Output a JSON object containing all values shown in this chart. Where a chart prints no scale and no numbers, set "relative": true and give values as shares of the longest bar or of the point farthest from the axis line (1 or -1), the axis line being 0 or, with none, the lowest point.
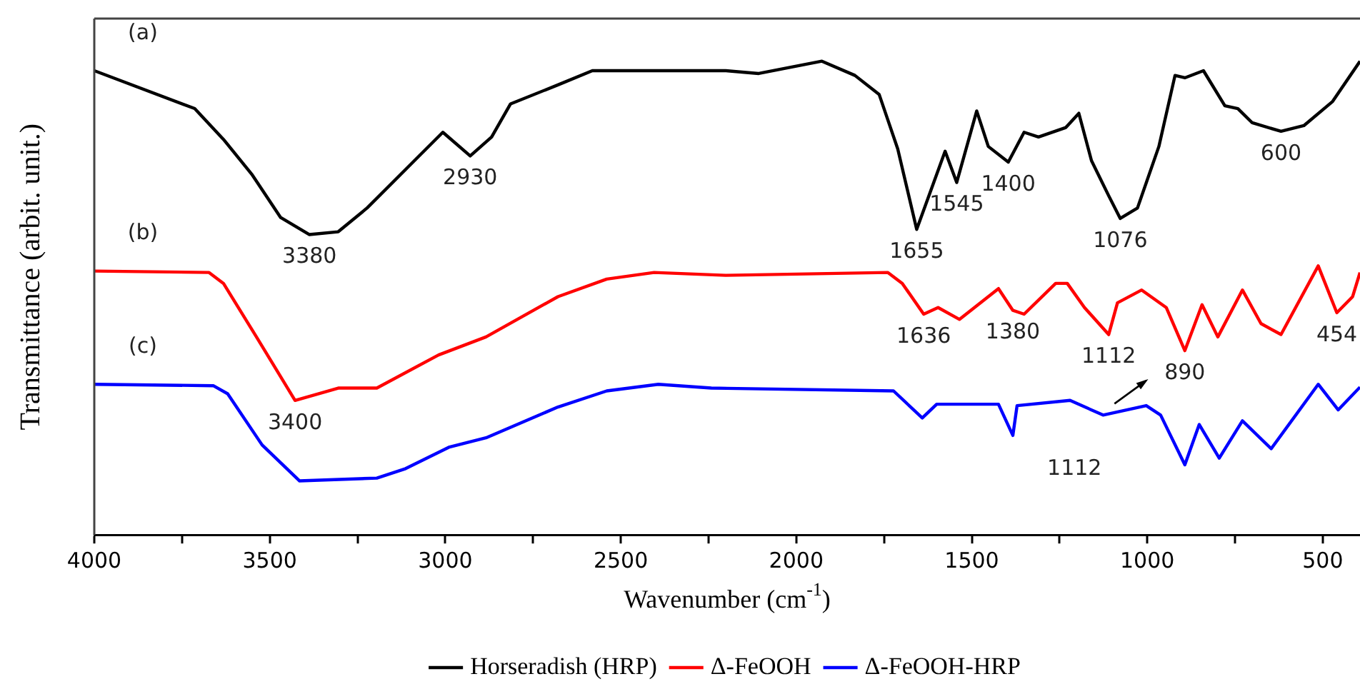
{
  "chart_data": {
    "type": "line",
    "relative": true,
    "xlabel": "Wavenumber (cm$^{-1}$)",
    "ylabel": "Transmittance (arbit. unit.)",
    "xlim": [
      4000,
      394
    ],
    "xticks": [
      4000,
      {
        "value": 3750,
        "label": null
      },
      3500,
      {
        "value": 3250,
        "label": null
      },
      3000,
      {
        "value": 2750,
        "label": null
      },
      2500,
      {
        "value": 2250,
        "label": null
      },
      2000,
      {
        "value": 1750,
        "label": null
      },
      1500,
      {
        "value": 1250,
        "label": null
      },
      1000,
      {
        "value": 750,
        "label": null
      },
      500
    ],
    "legend": "bottom",
    "grid": false,
    "marker": "none",
    "line_style": "solid",
    "series": [
      {
        "name": "Horseradish (HRP)",
        "color": "#000000",
        "x": [
          4000,
          3714,
          3632,
          3550,
          3469,
          3387,
          3305,
          3223,
          3088,
          3007,
          2929,
          2868,
          2814,
          2679,
          2581,
          2365,
          2201,
          2107,
          1927,
          1833,
          1764,
          1711,
          1657,
          1576,
          1543,
          1486,
          1453,
          1396,
          1351,
          1310,
          1232,
          1195,
          1159,
          1110,
          1077,
          1028,
          967,
          921,
          893,
          840,
          779,
          742,
          701,
          619,
          554,
          472,
          394
        ],
        "values": [
          0.98,
          0.9,
          0.835,
          0.76,
          0.67,
          0.634,
          0.64,
          0.69,
          0.79,
          0.85,
          0.8,
          0.84,
          0.91,
          0.95,
          0.98,
          0.98,
          0.98,
          0.974,
          1,
          0.97,
          0.93,
          0.815,
          0.645,
          0.81,
          0.744,
          0.895,
          0.82,
          0.787,
          0.85,
          0.84,
          0.86,
          0.89,
          0.79,
          0.716,
          0.668,
          0.69,
          0.82,
          0.97,
          0.965,
          0.98,
          0.906,
          0.9,
          0.87,
          0.852,
          0.864,
          0.915,
          1
        ]
      },
      {
        "name": "Δ-FeOOH",
        "color": "#ff0000",
        "x": [
          4000,
          3673,
          3632,
          3538,
          3428,
          3305,
          3195,
          3019,
          2884,
          2679,
          2540,
          2405,
          2201,
          1739,
          1698,
          1637,
          1596,
          1535,
          1424,
          1383,
          1351,
          1261,
          1228,
          1179,
          1110,
          1085,
          1016,
          946,
          893,
          844,
          799,
          729,
          676,
          619,
          513,
          460,
          415,
          394
        ],
        "values": [
          0.557,
          0.554,
          0.531,
          0.418,
          0.284,
          0.31,
          0.31,
          0.38,
          0.418,
          0.503,
          0.54,
          0.554,
          0.548,
          0.554,
          0.531,
          0.466,
          0.48,
          0.455,
          0.52,
          0.474,
          0.466,
          0.531,
          0.531,
          0.48,
          0.423,
          0.49,
          0.517,
          0.48,
          0.389,
          0.486,
          0.418,
          0.517,
          0.446,
          0.423,
          0.568,
          0.469,
          0.503,
          0.554
        ]
      },
      {
        "name": "Δ-FeOOH-HRP",
        "color": "#0000ff",
        "x": [
          4000,
          3661,
          3620,
          3522,
          3415,
          3195,
          3113,
          2990,
          2884,
          2679,
          2540,
          2393,
          2242,
          1723,
          1641,
          1600,
          1424,
          1383,
          1371,
          1220,
          1126,
          1003,
          962,
          893,
          852,
          795,
          729,
          647,
          513,
          456,
          394
        ],
        "values": [
          0.318,
          0.315,
          0.298,
          0.19,
          0.114,
          0.12,
          0.14,
          0.185,
          0.205,
          0.27,
          0.304,
          0.318,
          0.31,
          0.304,
          0.247,
          0.276,
          0.276,
          0.21,
          0.273,
          0.284,
          0.253,
          0.273,
          0.253,
          0.148,
          0.233,
          0.162,
          0.241,
          0.182,
          0.318,
          0.264,
          0.312
        ]
      }
    ],
    "annotations": [
      "(a)",
      "(b)",
      "(c)",
      {
        "text": "3380",
        "x": 3387,
        "y": 0.634
      },
      {
        "text": "2930",
        "x": 2929,
        "y": 0.8
      },
      {
        "text": "1655",
        "x": 1657,
        "y": 0.645
      },
      {
        "text": "1545",
        "x": 1543,
        "y": 0.744
      },
      {
        "text": "1400",
        "x": 1396,
        "y": 0.787
      },
      {
        "text": "1076",
        "x": 1077,
        "y": 0.668
      },
      {
        "text": "600",
        "x": 619,
        "y": 0.852
      },
      {
        "text": "1636",
        "x": 1637,
        "y": 0.466
      },
      {
        "text": "1380",
        "x": 1383,
        "y": 0.474
      },
      {
        "text": "1112",
        "x": 1110,
        "y": 0.423
      },
      {
        "text": "890",
        "x": 893,
        "y": 0.389
      },
      {
        "text": "454",
        "x": 460,
        "y": 0.469
      },
      {
        "text": "3400",
        "x": 3428,
        "y": 0.284
      },
      {
        "text": "1112",
        "x": 1126,
        "y": 0.253
      }
    ]
  }
}
